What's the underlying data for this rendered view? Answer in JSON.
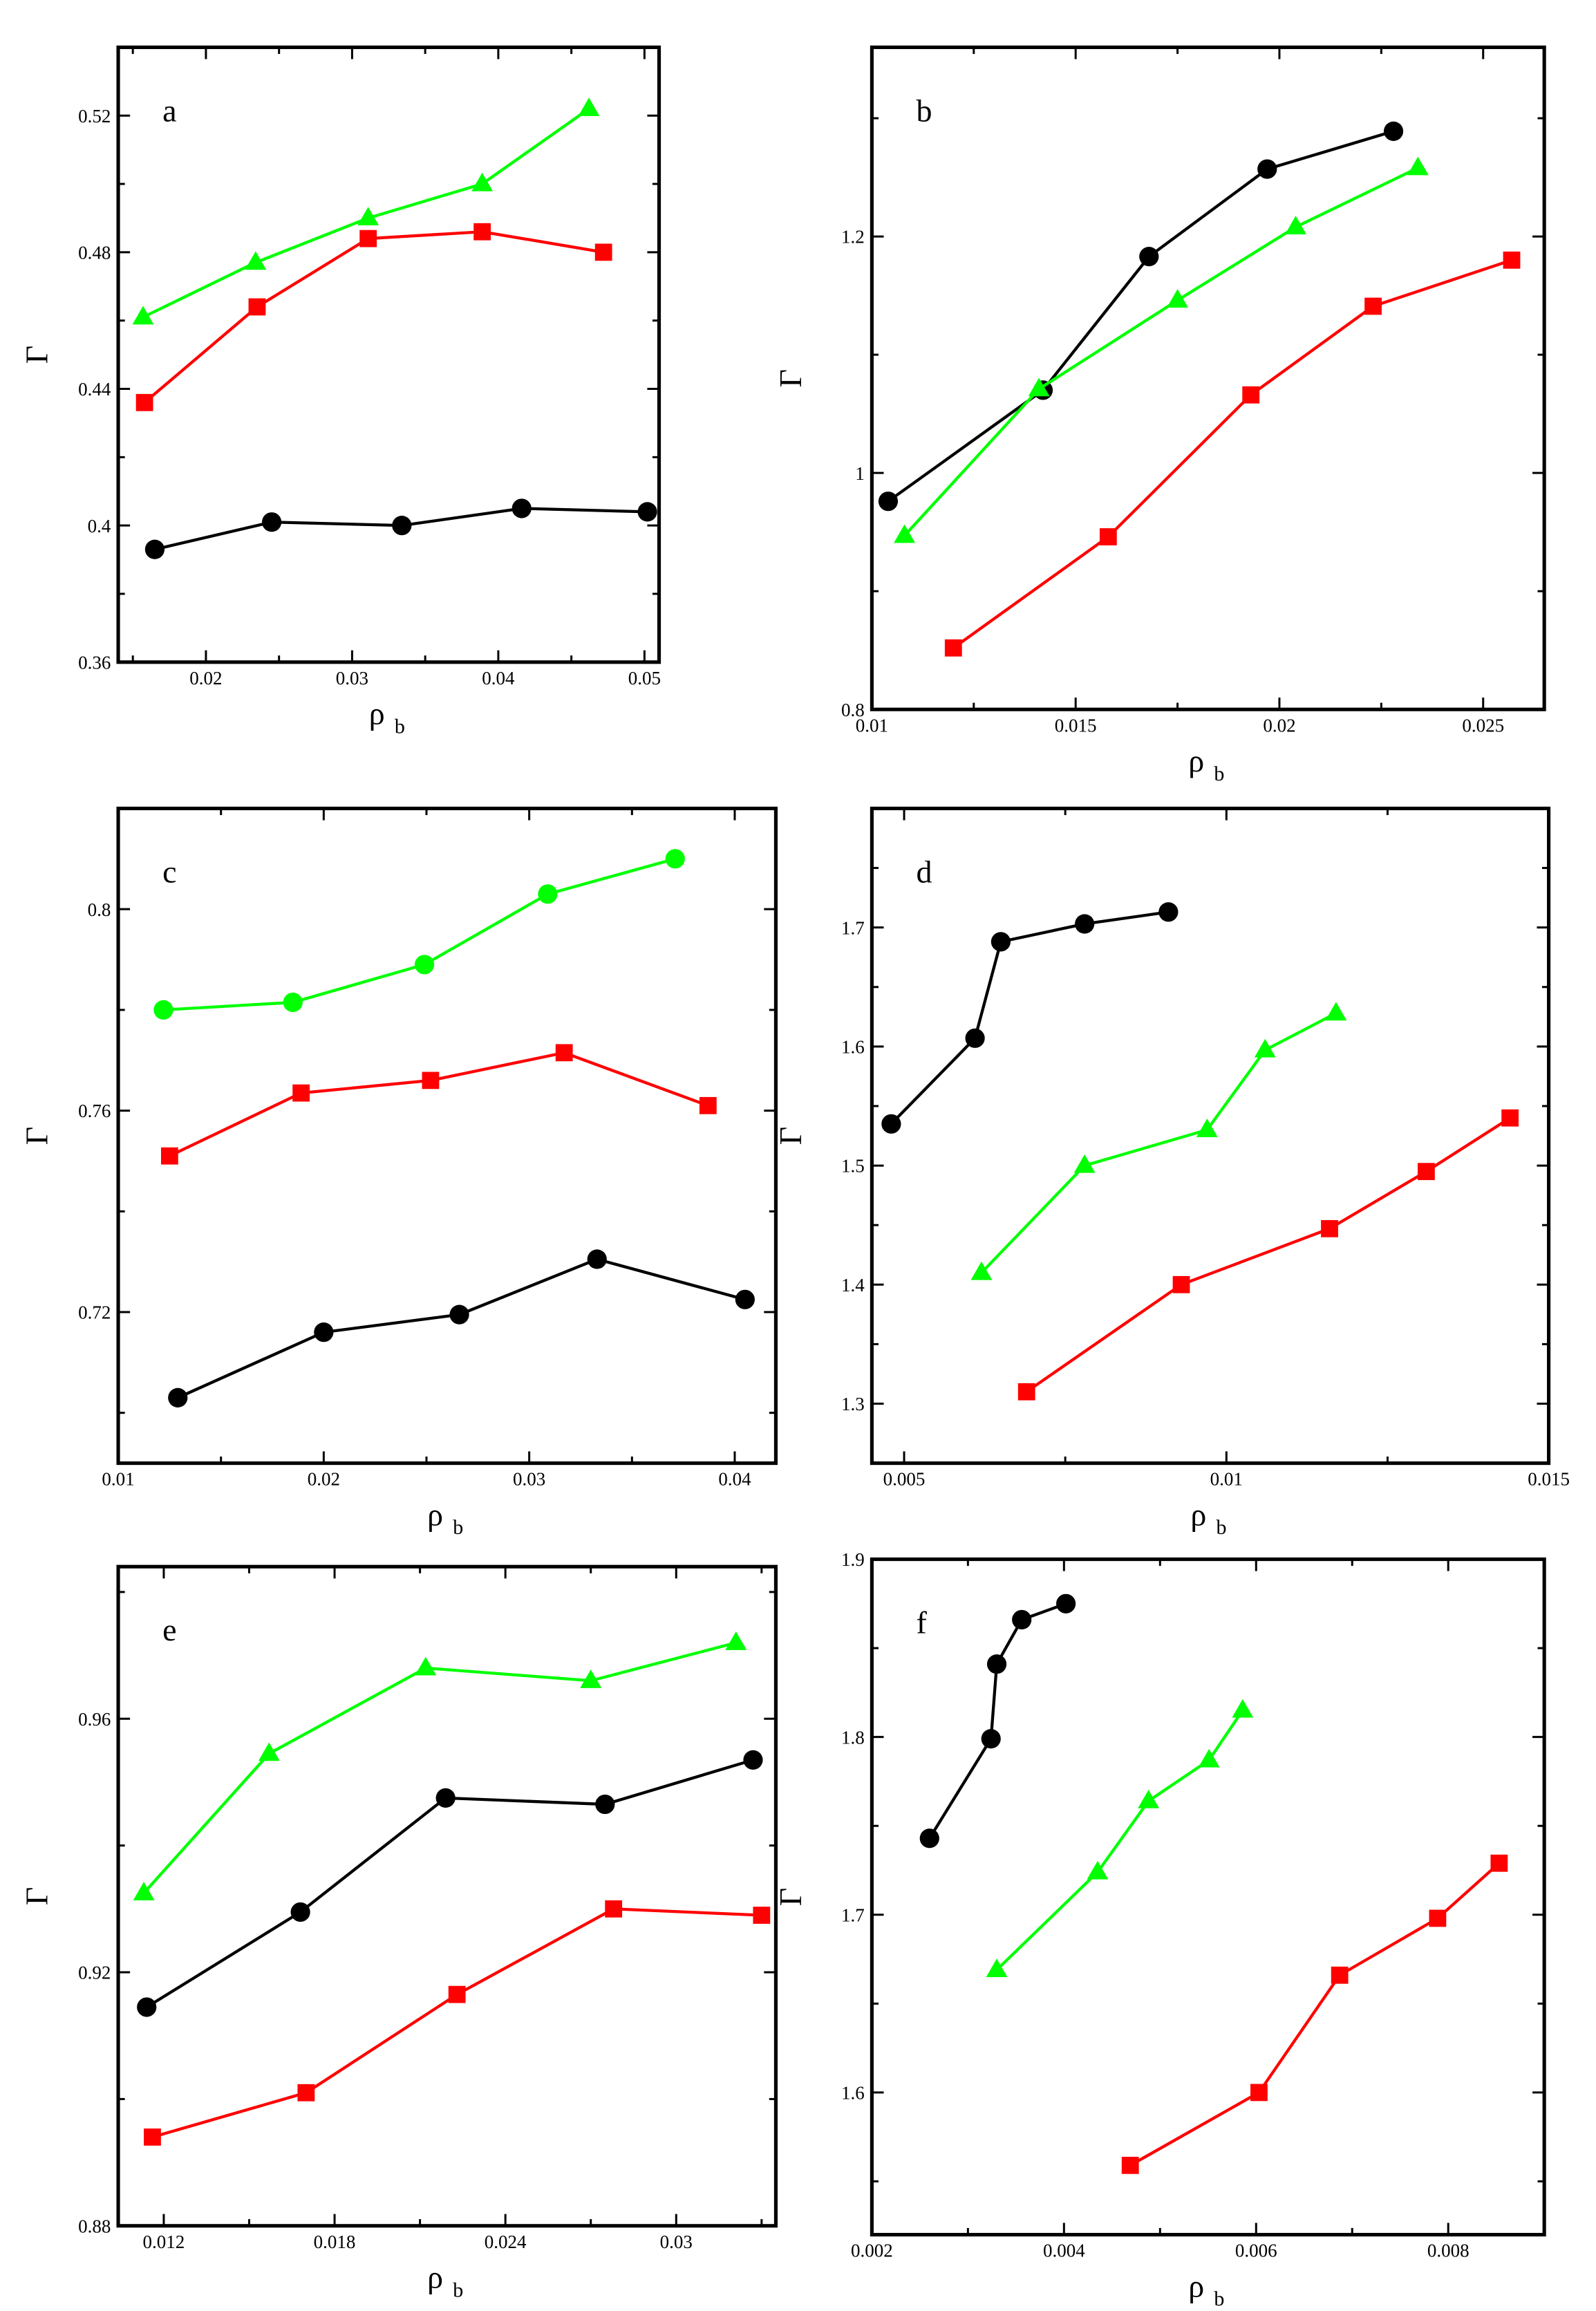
{
  "colors": {
    "black": "#000000",
    "red": "#ff0000",
    "green": "#00ff00"
  },
  "chart_data": [
    {
      "panel": "a",
      "type": "line",
      "xlabel": "ρ",
      "xlabel_sub": "b",
      "ylabel": "Γ",
      "xlim": [
        0.014,
        0.051
      ],
      "ylim": [
        0.36,
        0.54
      ],
      "xticks": [
        0.02,
        0.03,
        0.04,
        0.05
      ],
      "xtick_labels": [
        "0.02",
        "0.03",
        "0.04",
        "0.05"
      ],
      "yticks": [
        0.36,
        0.4,
        0.44,
        0.48,
        0.52
      ],
      "ytick_labels": [
        "0.36",
        "0.4",
        "0.44",
        "0.48",
        "0.52"
      ],
      "series": [
        {
          "name": "black circles",
          "color": "#000000",
          "marker": "circle",
          "x": [
            0.0165,
            0.0245,
            0.0334,
            0.0416,
            0.0502
          ],
          "y": [
            0.393,
            0.401,
            0.4,
            0.405,
            0.404
          ]
        },
        {
          "name": "red squares",
          "color": "#ff0000",
          "marker": "square",
          "x": [
            0.0158,
            0.0235,
            0.0311,
            0.0389,
            0.0472
          ],
          "y": [
            0.436,
            0.464,
            0.484,
            0.486,
            0.48
          ]
        },
        {
          "name": "green triangles",
          "color": "#00ff00",
          "marker": "triangle",
          "x": [
            0.0157,
            0.0234,
            0.0311,
            0.0389,
            0.0462
          ],
          "y": [
            0.461,
            0.477,
            0.49,
            0.5,
            0.522
          ]
        }
      ]
    },
    {
      "panel": "b",
      "type": "line",
      "xlabel": "ρ",
      "xlabel_sub": "b",
      "ylabel": "Γ",
      "xlim": [
        0.01,
        0.0265
      ],
      "ylim": [
        0.8,
        1.36
      ],
      "xticks": [
        0.01,
        0.015,
        0.02,
        0.025
      ],
      "xtick_labels": [
        "0.01",
        "0.015",
        "0.02",
        "0.025"
      ],
      "yticks": [
        0.8,
        1.0,
        1.2
      ],
      "ytick_labels": [
        "0.8",
        "1",
        "1.2"
      ],
      "series": [
        {
          "name": "black circles",
          "color": "#000000",
          "marker": "circle",
          "x": [
            0.0104,
            0.0142,
            0.0168,
            0.0197,
            0.0228
          ],
          "y": [
            0.976,
            1.07,
            1.183,
            1.257,
            1.289
          ]
        },
        {
          "name": "red squares",
          "color": "#ff0000",
          "marker": "square",
          "x": [
            0.012,
            0.0158,
            0.0193,
            0.0223,
            0.0257
          ],
          "y": [
            0.852,
            0.946,
            1.066,
            1.141,
            1.18
          ]
        },
        {
          "name": "green triangles",
          "color": "#00ff00",
          "marker": "triangle",
          "x": [
            0.0108,
            0.0141,
            0.0175,
            0.0204,
            0.0234
          ],
          "y": [
            0.947,
            1.071,
            1.146,
            1.208,
            1.258
          ]
        }
      ]
    },
    {
      "panel": "c",
      "type": "line",
      "xlabel": "ρ",
      "xlabel_sub": "b",
      "ylabel": "Γ",
      "xlim": [
        0.01,
        0.042
      ],
      "ylim": [
        0.69,
        0.82
      ],
      "xticks": [
        0.01,
        0.02,
        0.03,
        0.04
      ],
      "xtick_labels": [
        "0.01",
        "0.02",
        "0.03",
        "0.04"
      ],
      "yticks": [
        0.72,
        0.76,
        0.8
      ],
      "ytick_labels": [
        "0.72",
        "0.76",
        "0.8"
      ],
      "series": [
        {
          "name": "black circles",
          "color": "#000000",
          "marker": "circle",
          "x": [
            0.0129,
            0.02,
            0.0266,
            0.0333,
            0.0405
          ],
          "y": [
            0.703,
            0.716,
            0.7195,
            0.7305,
            0.7225
          ]
        },
        {
          "name": "red squares",
          "color": "#ff0000",
          "marker": "square",
          "x": [
            0.0125,
            0.0189,
            0.0252,
            0.0317,
            0.0387
          ],
          "y": [
            0.751,
            0.7635,
            0.766,
            0.7715,
            0.761
          ]
        },
        {
          "name": "green circles",
          "color": "#00ff00",
          "marker": "circle",
          "x": [
            0.0122,
            0.0185,
            0.0249,
            0.0309,
            0.0371
          ],
          "y": [
            0.78,
            0.7815,
            0.789,
            0.803,
            0.81
          ]
        }
      ]
    },
    {
      "panel": "d",
      "type": "line",
      "xlabel": "ρ",
      "xlabel_sub": "b",
      "ylabel": "Γ",
      "xlim": [
        0.0045,
        0.015
      ],
      "ylim": [
        1.25,
        1.8
      ],
      "xticks": [
        0.005,
        0.01,
        0.015
      ],
      "xtick_labels": [
        "0.005",
        "0.01",
        "0.015"
      ],
      "yticks": [
        1.3,
        1.4,
        1.5,
        1.6,
        1.7
      ],
      "ytick_labels": [
        "1.3",
        "1.4",
        "1.5",
        "1.6",
        "1.7"
      ],
      "series": [
        {
          "name": "black circles",
          "color": "#000000",
          "marker": "circle",
          "x": [
            0.0048,
            0.0061,
            0.0065,
            0.0078,
            0.0091
          ],
          "y": [
            1.535,
            1.607,
            1.688,
            1.703,
            1.713
          ]
        },
        {
          "name": "red squares",
          "color": "#ff0000",
          "marker": "square",
          "x": [
            0.0069,
            0.0093,
            0.0116,
            0.0131,
            0.0144
          ],
          "y": [
            1.31,
            1.4,
            1.447,
            1.495,
            1.54
          ]
        },
        {
          "name": "green triangles",
          "color": "#00ff00",
          "marker": "triangle",
          "x": [
            0.0062,
            0.0078,
            0.0097,
            0.0106,
            0.0117
          ],
          "y": [
            1.41,
            1.5,
            1.53,
            1.597,
            1.628
          ]
        }
      ]
    },
    {
      "panel": "e",
      "type": "line",
      "xlabel": "ρ",
      "xlabel_sub": "b",
      "ylabel": "Γ",
      "xlim": [
        0.0104,
        0.0335
      ],
      "ylim": [
        0.88,
        0.984
      ],
      "xticks": [
        0.012,
        0.018,
        0.024,
        0.03
      ],
      "xtick_labels": [
        "0.012",
        "0.018",
        "0.024",
        "0.03"
      ],
      "yticks": [
        0.88,
        0.92,
        0.96
      ],
      "ytick_labels": [
        "0.88",
        "0.92",
        "0.96"
      ],
      "series": [
        {
          "name": "black circles",
          "color": "#000000",
          "marker": "circle",
          "x": [
            0.0114,
            0.0168,
            0.0219,
            0.0275,
            0.0327
          ],
          "y": [
            0.9145,
            0.9295,
            0.9475,
            0.9465,
            0.9535
          ]
        },
        {
          "name": "red squares",
          "color": "#ff0000",
          "marker": "square",
          "x": [
            0.0116,
            0.017,
            0.0223,
            0.0278,
            0.033
          ],
          "y": [
            0.894,
            0.901,
            0.9165,
            0.93,
            0.929
          ]
        },
        {
          "name": "green triangles",
          "color": "#00ff00",
          "marker": "triangle",
          "x": [
            0.0113,
            0.0157,
            0.0212,
            0.027,
            0.0321
          ],
          "y": [
            0.9325,
            0.9545,
            0.968,
            0.966,
            0.972
          ]
        }
      ]
    },
    {
      "panel": "f",
      "type": "line",
      "xlabel": "ρ",
      "xlabel_sub": "b",
      "ylabel": "Γ",
      "xlim": [
        0.002,
        0.009
      ],
      "ylim": [
        1.52,
        1.9
      ],
      "xticks": [
        0.002,
        0.004,
        0.006,
        0.008
      ],
      "xtick_labels": [
        "0.002",
        "0.004",
        "0.006",
        "0.008"
      ],
      "yticks": [
        1.6,
        1.7,
        1.8,
        1.9
      ],
      "ytick_labels": [
        "1.6",
        "1.7",
        "1.8",
        "1.9"
      ],
      "series": [
        {
          "name": "black circles",
          "color": "#000000",
          "marker": "circle",
          "x": [
            0.0026,
            0.00324,
            0.0033,
            0.00356,
            0.00402
          ],
          "y": [
            1.743,
            1.799,
            1.841,
            1.866,
            1.875
          ]
        },
        {
          "name": "red squares",
          "color": "#ff0000",
          "marker": "square",
          "x": [
            0.00469,
            0.00603,
            0.00687,
            0.00789,
            0.00853
          ],
          "y": [
            1.559,
            1.6,
            1.666,
            1.698,
            1.729
          ]
        },
        {
          "name": "green triangles",
          "color": "#00ff00",
          "marker": "triangle",
          "x": [
            0.0033,
            0.00435,
            0.00488,
            0.00551,
            0.00586
          ],
          "y": [
            1.669,
            1.724,
            1.764,
            1.787,
            1.815
          ]
        }
      ]
    }
  ]
}
